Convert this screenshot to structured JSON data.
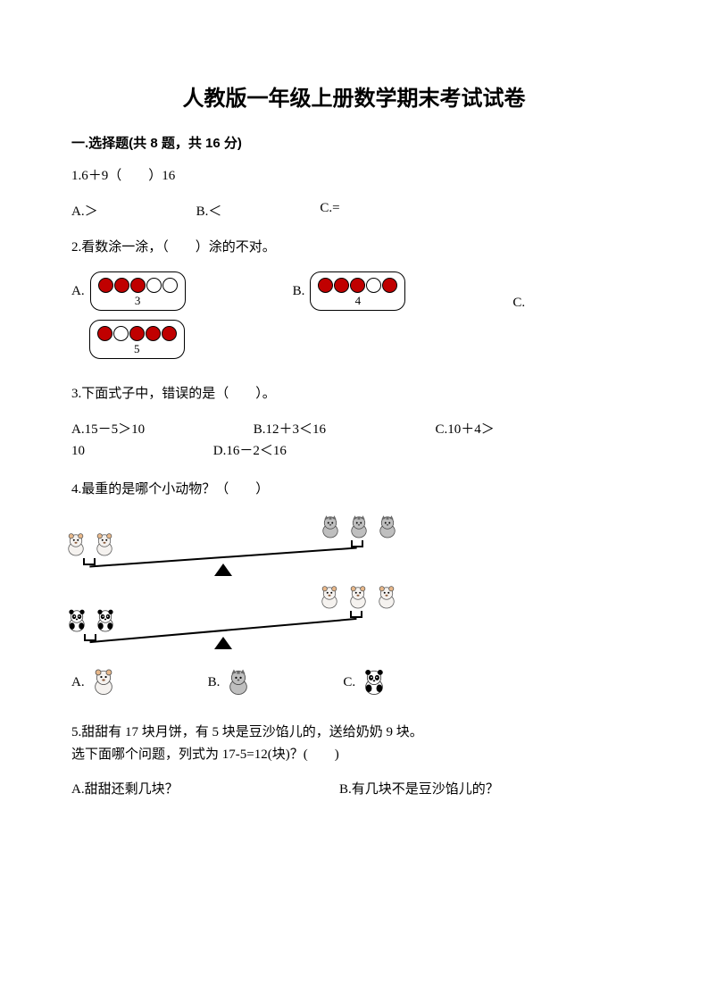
{
  "title": "人教版一年级上册数学期末考试试卷",
  "section1": {
    "header": "一.选择题(共 8 题，共 16 分)"
  },
  "q1": {
    "text": "1.6＋9（　　）16",
    "opts": {
      "a": "A.＞",
      "b": "B.＜",
      "c": "C.="
    }
  },
  "q2": {
    "text": "2.看数涂一涂，（　　）涂的不对。",
    "opts": {
      "a": {
        "label": "A.",
        "circles": [
          true,
          true,
          true,
          false,
          false
        ],
        "num": "3"
      },
      "b": {
        "label": "B.",
        "circles": [
          true,
          true,
          true,
          false,
          true
        ],
        "num": "4"
      },
      "c": {
        "label": "C.",
        "circles": [
          true,
          false,
          true,
          true,
          true
        ],
        "num": "5"
      }
    },
    "colors": {
      "fill": "#c00000",
      "border": "#000000"
    }
  },
  "q3": {
    "text": "3.下面式子中，错误的是（　　）。",
    "opts": {
      "a": "A.15－5＞10",
      "b": "B.12＋3＜16",
      "c": "C.10＋4＞",
      "c2": "10",
      "d": "D.16－2＜16"
    }
  },
  "q4": {
    "text": "4.最重的是哪个小动物？（　　）",
    "seesaw1": {
      "left_animals": [
        "bear",
        "bear"
      ],
      "right_animals": [
        "cat",
        "cat",
        "cat"
      ],
      "tilt_deg": -4
    },
    "seesaw2": {
      "left_animals": [
        "panda",
        "panda"
      ],
      "right_animals": [
        "bear",
        "bear",
        "bear"
      ],
      "tilt_deg": -5
    },
    "opts": {
      "a": {
        "label": "A.",
        "animal": "bear"
      },
      "b": {
        "label": "B.",
        "animal": "cat"
      },
      "c": {
        "label": "C.",
        "animal": "panda"
      }
    },
    "animal_colors": {
      "bear": {
        "body": "#f5f2ef",
        "ear": "#e8b88a",
        "outline": "#555"
      },
      "cat": {
        "body": "#bfbfbf",
        "stripe": "#6b6b6b",
        "outline": "#444"
      },
      "panda": {
        "body": "#ffffff",
        "patch": "#000000",
        "outline": "#333"
      }
    }
  },
  "q5": {
    "line1": "5.甜甜有 17 块月饼，有 5 块是豆沙馅儿的，送给奶奶 9 块。",
    "line2": "选下面哪个问题，列式为 17-5=12(块)？(　　)",
    "opts": {
      "a": "A.甜甜还剩几块？",
      "b": "B.有几块不是豆沙馅儿的？"
    }
  }
}
